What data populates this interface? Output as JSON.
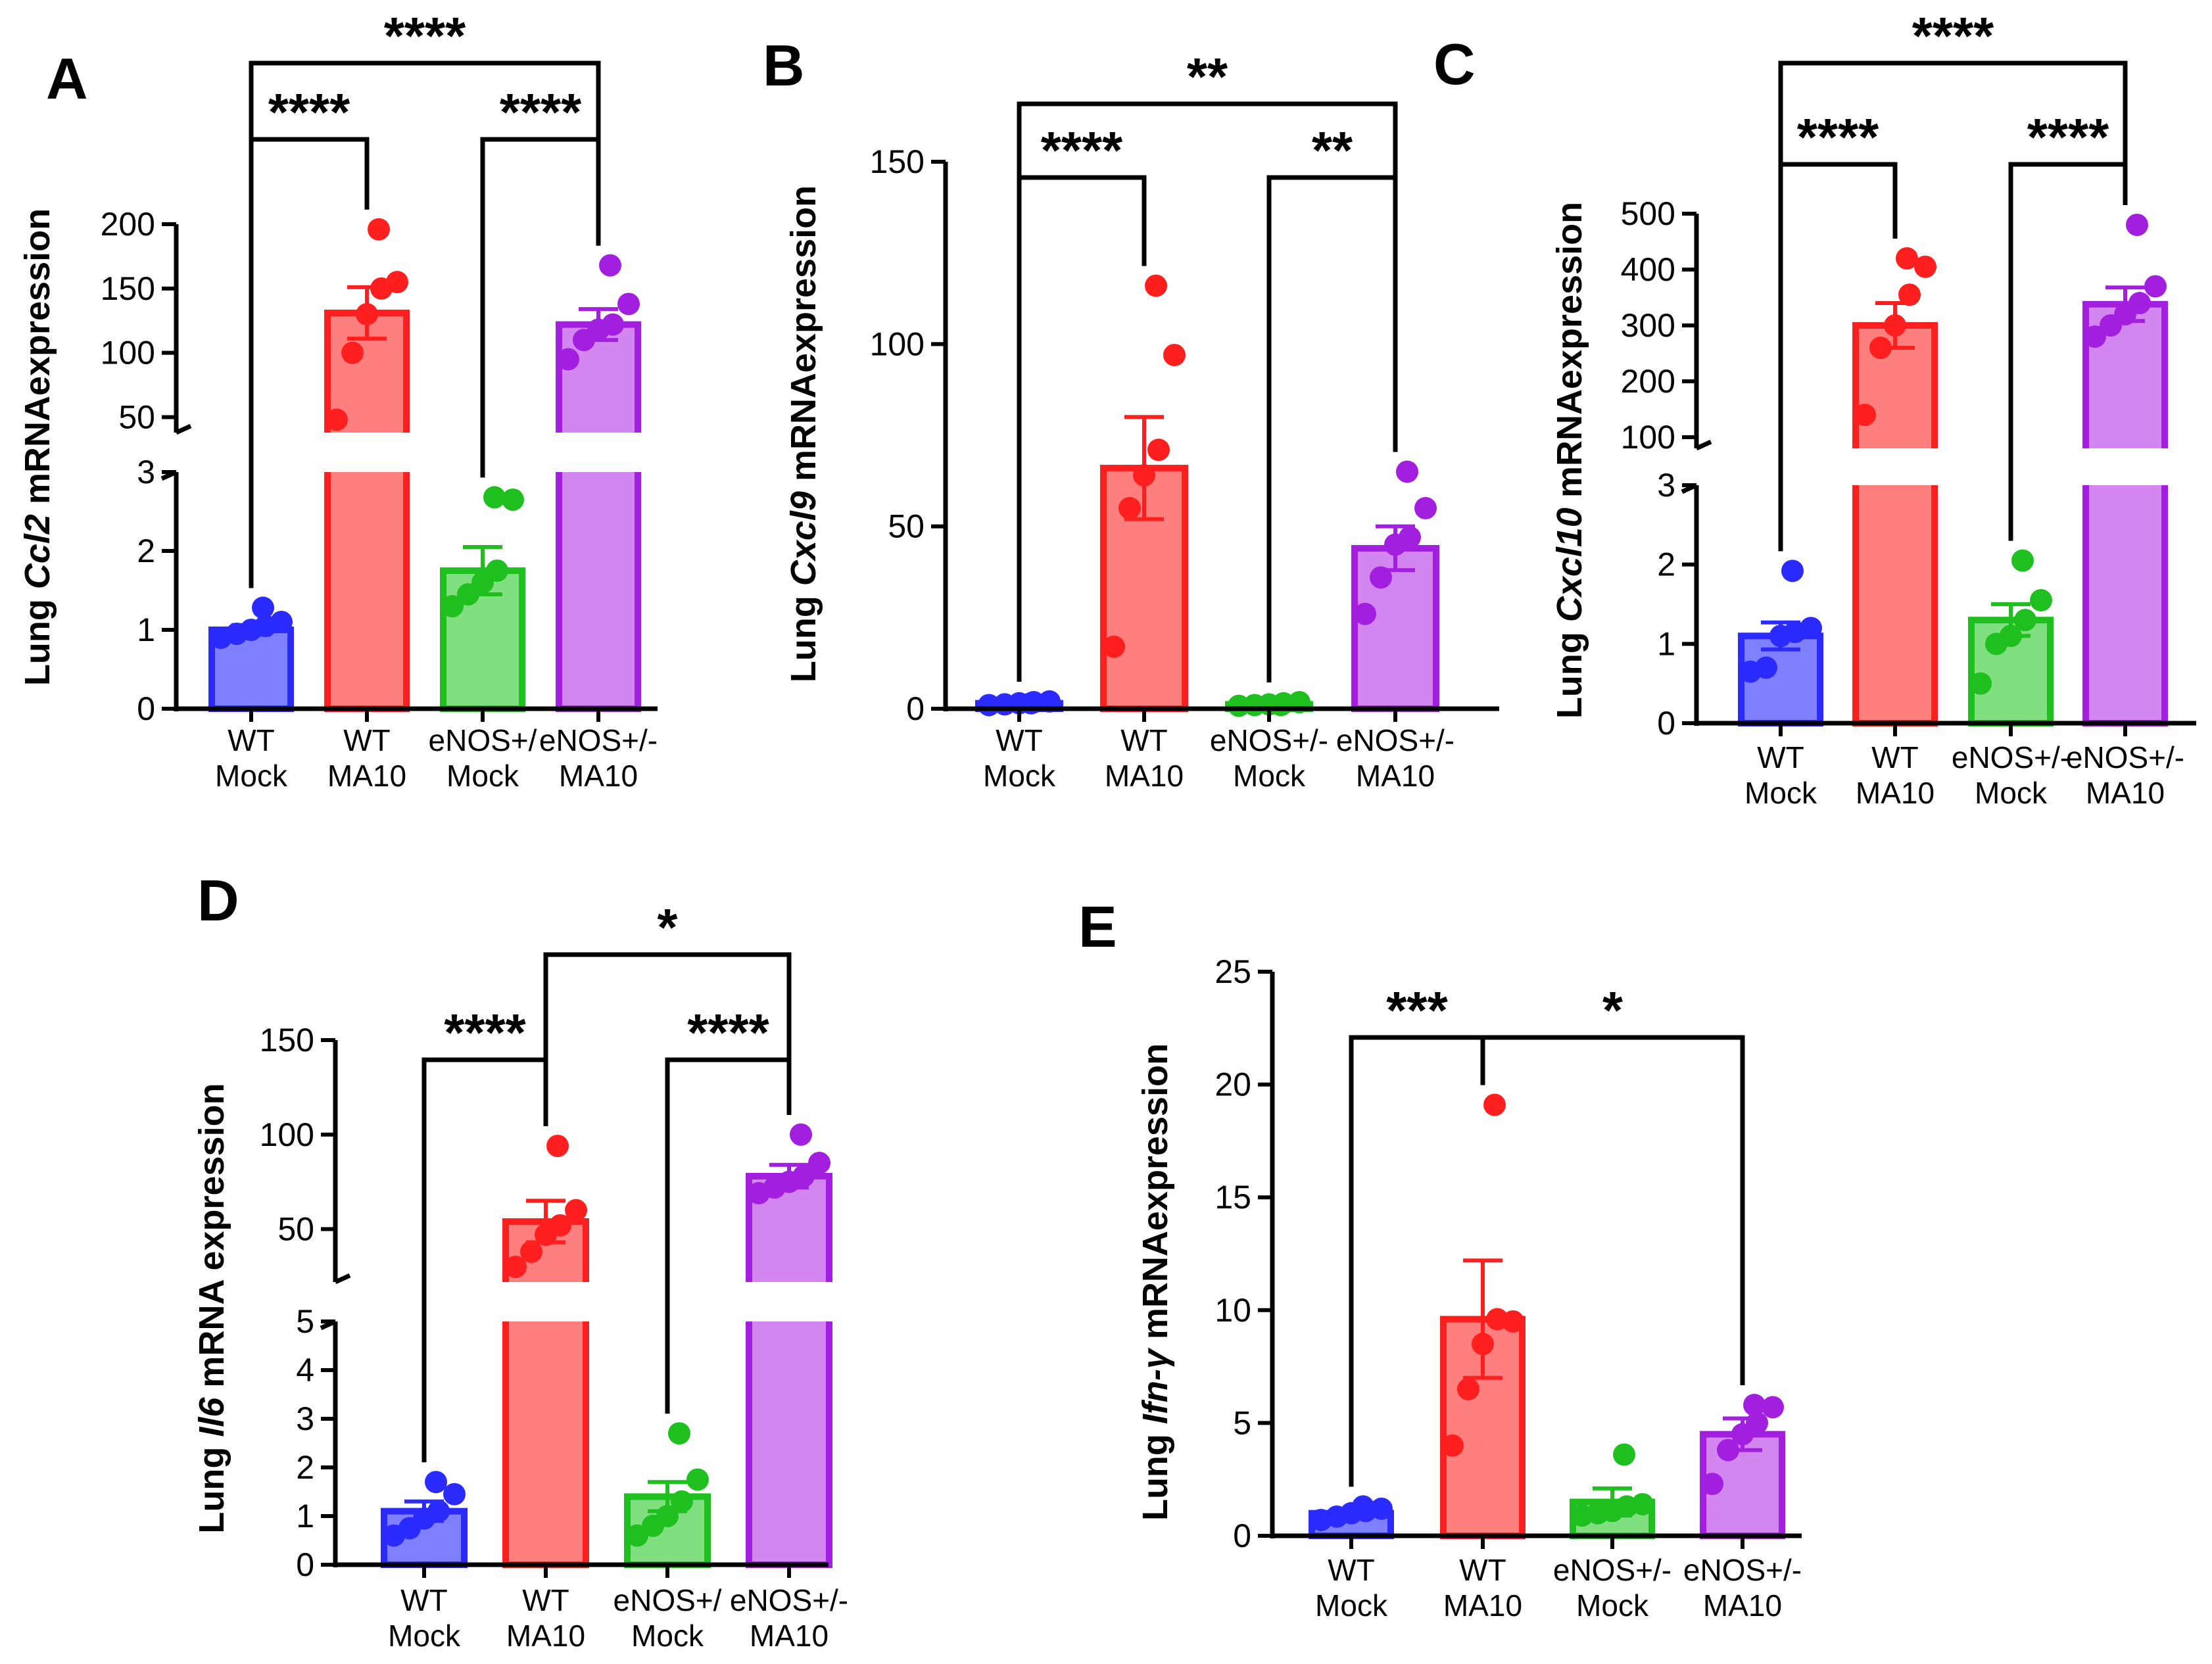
{
  "chart_data": [
    {
      "panel_label": "A",
      "type": "bar",
      "ylabel_prefix": "Lung ",
      "ylabel_gene": "Ccl2",
      "ylabel_suffix": " mRNAexpression",
      "categories": [
        [
          "WT",
          "Mock"
        ],
        [
          "WT",
          "MA10"
        ],
        [
          "eNOS+/",
          "Mock"
        ],
        [
          "eNOS+/-",
          "MA10"
        ]
      ],
      "colors": [
        "#2b2bff",
        "#ff1f1f",
        "#1fbf1f",
        "#a31fe0"
      ],
      "fills": [
        "#7f80ff",
        "#ff7f7f",
        "#80e080",
        "#d385f0"
      ],
      "values": [
        1.0,
        131,
        1.75,
        122
      ],
      "errors": [
        0.06,
        20,
        0.3,
        12
      ],
      "points": [
        [
          0.9,
          0.95,
          1.0,
          1.05,
          1.1,
          1.28
        ],
        [
          48,
          100,
          130,
          150,
          155,
          196
        ],
        [
          1.3,
          1.45,
          1.6,
          1.75,
          2.65,
          2.68
        ],
        [
          95,
          110,
          118,
          122,
          138,
          168
        ]
      ],
      "lower_ticks": [
        0,
        1,
        2,
        3
      ],
      "upper_ticks": [
        50,
        100,
        150,
        200
      ],
      "comparisons": [
        {
          "from": 0,
          "to": 1,
          "stars": "****",
          "level": 0
        },
        {
          "from": 2,
          "to": 3,
          "stars": "****",
          "level": 0
        },
        {
          "from": 0,
          "to": 3,
          "stars": "****",
          "level": 1
        }
      ]
    },
    {
      "panel_label": "B",
      "type": "bar",
      "ylabel_prefix": "Lung ",
      "ylabel_gene": "Cxcl9",
      "ylabel_suffix": " mRNAexpression",
      "categories": [
        [
          "WT",
          "Mock"
        ],
        [
          "WT",
          "MA10"
        ],
        [
          "eNOS+/-",
          "Mock"
        ],
        [
          "eNOS+/-",
          "MA10"
        ]
      ],
      "colors": [
        "#2b2bff",
        "#ff1f1f",
        "#1fbf1f",
        "#a31fe0"
      ],
      "fills": [
        "#7f80ff",
        "#ff7f7f",
        "#80e080",
        "#d385f0"
      ],
      "values": [
        1.5,
        66,
        1.2,
        44
      ],
      "errors": [
        0.3,
        14,
        0.3,
        6
      ],
      "points": [
        [
          1,
          1.2,
          1.5,
          1.8,
          2,
          1.5
        ],
        [
          17,
          55,
          64,
          71,
          97,
          116
        ],
        [
          0.8,
          1,
          1.2,
          1.5,
          1.8,
          1
        ],
        [
          26,
          36,
          45,
          47,
          55,
          65
        ]
      ],
      "ticks": [
        0,
        50,
        100,
        150
      ],
      "comparisons": [
        {
          "from": 0,
          "to": 1,
          "stars": "****",
          "level": 0
        },
        {
          "from": 2,
          "to": 3,
          "stars": "**",
          "level": 0
        },
        {
          "from": 0,
          "to": 3,
          "stars": "**",
          "level": 1
        }
      ]
    },
    {
      "panel_label": "C",
      "type": "bar",
      "ylabel_prefix": "Lung ",
      "ylabel_gene": "Cxcl10",
      "ylabel_suffix": " mRNAexpression",
      "categories": [
        [
          "WT",
          "Mock"
        ],
        [
          "WT",
          "MA10"
        ],
        [
          "eNOS+/-",
          "Mock"
        ],
        [
          "eNOS+/-",
          "MA10"
        ]
      ],
      "colors": [
        "#2b2bff",
        "#ff1f1f",
        "#1fbf1f",
        "#a31fe0"
      ],
      "fills": [
        "#7f80ff",
        "#ff7f7f",
        "#80e080",
        "#d385f0"
      ],
      "values": [
        1.1,
        300,
        1.3,
        338
      ],
      "errors": [
        0.17,
        40,
        0.2,
        30
      ],
      "points": [
        [
          0.65,
          0.7,
          1.1,
          1.15,
          1.2,
          1.92
        ],
        [
          140,
          260,
          300,
          355,
          405,
          420
        ],
        [
          0.5,
          1.0,
          1.1,
          1.3,
          1.55,
          2.05
        ],
        [
          280,
          300,
          320,
          340,
          370,
          480
        ]
      ],
      "lower_ticks": [
        0,
        1,
        2,
        3
      ],
      "upper_ticks": [
        100,
        200,
        300,
        400,
        500
      ],
      "comparisons": [
        {
          "from": 0,
          "to": 1,
          "stars": "****",
          "level": 0
        },
        {
          "from": 2,
          "to": 3,
          "stars": "****",
          "level": 0
        },
        {
          "from": 0,
          "to": 3,
          "stars": "****",
          "level": 1
        }
      ]
    },
    {
      "panel_label": "D",
      "type": "bar",
      "ylabel_prefix": "Lung ",
      "ylabel_gene": "Il6",
      "ylabel_suffix": " mRNA expression",
      "categories": [
        [
          "WT",
          "Mock"
        ],
        [
          "WT",
          "MA10"
        ],
        [
          "eNOS+/",
          "Mock"
        ],
        [
          "eNOS+/-",
          "MA10"
        ]
      ],
      "colors": [
        "#2b2bff",
        "#ff1f1f",
        "#1fbf1f",
        "#a31fe0"
      ],
      "fills": [
        "#7f80ff",
        "#ff7f7f",
        "#80e080",
        "#d385f0"
      ],
      "values": [
        1.1,
        54,
        1.4,
        78
      ],
      "errors": [
        0.2,
        11,
        0.3,
        6
      ],
      "points": [
        [
          0.6,
          0.75,
          0.95,
          1.1,
          1.45,
          1.7
        ],
        [
          30,
          38,
          47,
          52,
          60,
          94
        ],
        [
          0.6,
          0.8,
          1.0,
          1.3,
          1.75,
          2.7
        ],
        [
          69,
          72,
          75,
          78,
          85,
          100
        ]
      ],
      "lower_ticks": [
        0,
        1,
        2,
        3,
        4,
        5
      ],
      "upper_ticks": [
        50,
        100,
        150
      ],
      "comparisons": [
        {
          "from": 0,
          "to": 1,
          "stars": "****",
          "level": 0
        },
        {
          "from": 2,
          "to": 3,
          "stars": "****",
          "level": 0
        },
        {
          "from": 1,
          "to": 3,
          "stars": "*",
          "level": 1
        }
      ]
    },
    {
      "panel_label": "E",
      "type": "bar",
      "ylabel_prefix": "Lung ",
      "ylabel_gene": "Ifn-γ",
      "ylabel_suffix": " mRNAexpression",
      "categories": [
        [
          "WT",
          "Mock"
        ],
        [
          "WT",
          "MA10"
        ],
        [
          "eNOS+/-",
          "Mock"
        ],
        [
          "eNOS+/-",
          "MA10"
        ]
      ],
      "colors": [
        "#2b2bff",
        "#ff1f1f",
        "#1fbf1f",
        "#a31fe0"
      ],
      "fills": [
        "#7f80ff",
        "#ff7f7f",
        "#80e080",
        "#d385f0"
      ],
      "values": [
        1.0,
        9.6,
        1.5,
        4.5
      ],
      "errors": [
        0.15,
        2.6,
        0.6,
        0.7
      ],
      "points": [
        [
          0.7,
          0.85,
          1.0,
          1.1,
          1.2,
          1.3
        ],
        [
          4.0,
          6.5,
          8.5,
          9.6,
          9.5,
          19.1
        ],
        [
          0.9,
          1.0,
          1.1,
          1.3,
          1.4,
          3.6
        ],
        [
          2.3,
          3.8,
          4.5,
          5.0,
          5.7,
          5.8
        ]
      ],
      "ticks": [
        0,
        5,
        10,
        15,
        20,
        25
      ],
      "comparisons": [
        {
          "from": 0,
          "to": 1,
          "stars": "***",
          "level": 0
        },
        {
          "from": 1,
          "to": 3,
          "stars": "*",
          "level": 0
        }
      ]
    }
  ]
}
